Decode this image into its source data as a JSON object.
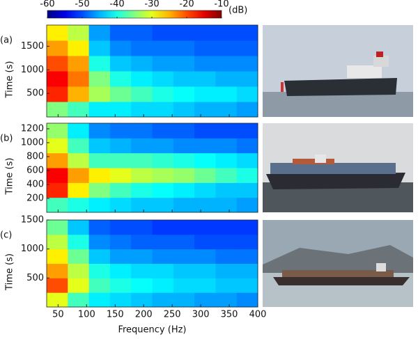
{
  "chart_data": {
    "type": "heatmap",
    "colorbar": {
      "lim": [
        -60,
        -10
      ],
      "ticks": [
        -60,
        -50,
        -40,
        -30,
        -20,
        -10
      ],
      "label": "(dB)"
    },
    "xlabel": "Frequency (Hz)",
    "xlim": [
      30,
      400
    ],
    "xticks": [
      50,
      100,
      150,
      200,
      250,
      300,
      350,
      400
    ],
    "panels": [
      {
        "label": "(a)",
        "ylabel": "Time (s)",
        "ylim": [
          0,
          1950
        ],
        "yticks": [
          500,
          1000,
          1500
        ],
        "z": [
          [
            -35,
            -38,
            -42,
            -42,
            -43,
            -43,
            -44,
            -45,
            -45,
            -46
          ],
          [
            -18,
            -25,
            -33,
            -36,
            -38,
            -40,
            -41,
            -42,
            -42,
            -43
          ],
          [
            -16,
            -22,
            -35,
            -40,
            -42,
            -43,
            -44,
            -44,
            -45,
            -45
          ],
          [
            -20,
            -24,
            -40,
            -44,
            -45,
            -46,
            -46,
            -47,
            -47,
            -47
          ],
          [
            -24,
            -28,
            -44,
            -47,
            -48,
            -48,
            -48,
            -49,
            -49,
            -49
          ],
          [
            -28,
            -32,
            -46,
            -49,
            -49,
            -50,
            -50,
            -50,
            -50,
            -50
          ]
        ]
      },
      {
        "label": "(b)",
        "ylabel": "Time (s)",
        "ylim": [
          0,
          1280
        ],
        "yticks": [
          200,
          400,
          600,
          800,
          1000,
          1200
        ],
        "z": [
          [
            -38,
            -40,
            -42,
            -43,
            -44,
            -44,
            -45,
            -45,
            -45,
            -46
          ],
          [
            -18,
            -28,
            -35,
            -38,
            -40,
            -41,
            -42,
            -43,
            -44,
            -44
          ],
          [
            -16,
            -24,
            -28,
            -30,
            -32,
            -33,
            -34,
            -36,
            -38,
            -40
          ],
          [
            -24,
            -32,
            -38,
            -38,
            -38,
            -39,
            -40,
            -41,
            -42,
            -43
          ],
          [
            -30,
            -38,
            -44,
            -45,
            -46,
            -46,
            -47,
            -47,
            -47,
            -48
          ],
          [
            -34,
            -42,
            -47,
            -48,
            -48,
            -49,
            -49,
            -50,
            -50,
            -50
          ]
        ]
      },
      {
        "label": "(c)",
        "ylabel": "Time (s)",
        "ylim": [
          0,
          1500
        ],
        "yticks": [
          500,
          1000,
          1500
        ],
        "z": [
          [
            -30,
            -38,
            -42,
            -43,
            -44,
            -45,
            -45,
            -46,
            -46,
            -47
          ],
          [
            -20,
            -30,
            -38,
            -40,
            -41,
            -42,
            -43,
            -43,
            -44,
            -44
          ],
          [
            -24,
            -32,
            -40,
            -42,
            -43,
            -43,
            -44,
            -44,
            -45,
            -45
          ],
          [
            -28,
            -36,
            -44,
            -46,
            -46,
            -47,
            -47,
            -47,
            -48,
            -48
          ],
          [
            -32,
            -40,
            -47,
            -48,
            -49,
            -49,
            -49,
            -50,
            -50,
            -50
          ],
          [
            -36,
            -44,
            -49,
            -50,
            -50,
            -51,
            -51,
            -51,
            -51,
            -51
          ]
        ]
      }
    ]
  }
}
